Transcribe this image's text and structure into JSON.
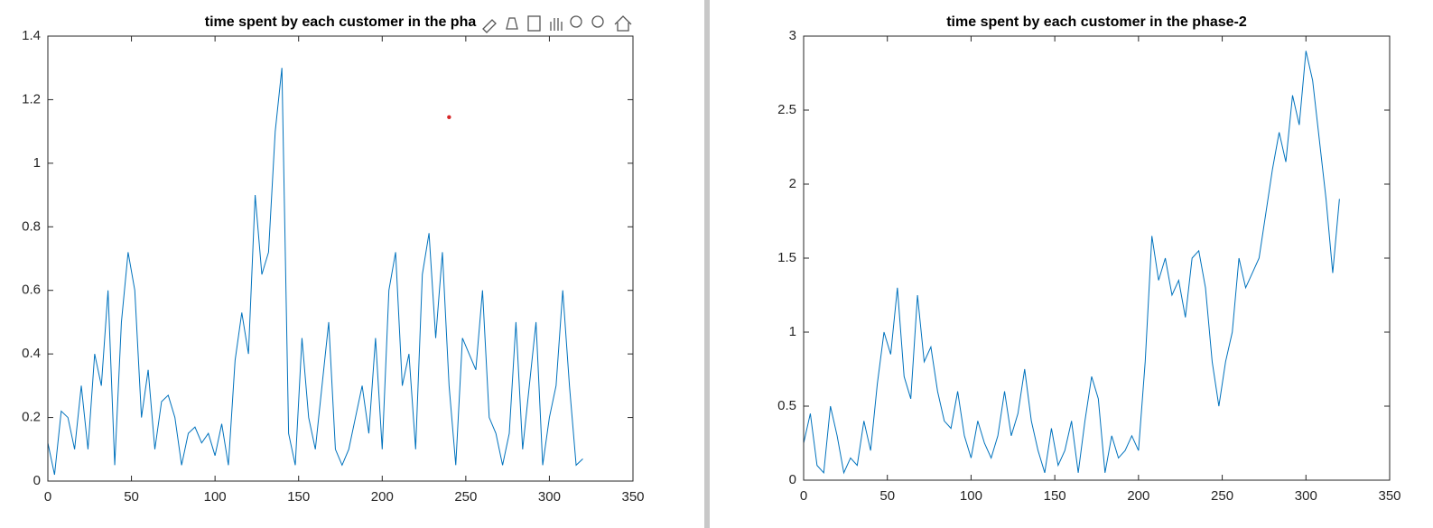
{
  "chart_data": [
    {
      "type": "line",
      "title": "time spent by each customer in the pha",
      "color": "#0072bd",
      "x": [
        0,
        4,
        8,
        12,
        16,
        20,
        24,
        28,
        32,
        36,
        40,
        44,
        48,
        52,
        56,
        60,
        64,
        68,
        72,
        76,
        80,
        84,
        88,
        92,
        96,
        100,
        104,
        108,
        112,
        116,
        120,
        124,
        128,
        132,
        136,
        140,
        144,
        148,
        152,
        156,
        160,
        164,
        168,
        172,
        176,
        180,
        184,
        188,
        192,
        196,
        200,
        204,
        208,
        212,
        216,
        220,
        224,
        228,
        232,
        236,
        240,
        244,
        248,
        252,
        256,
        260,
        264,
        268,
        272,
        276,
        280,
        284,
        288,
        292,
        296,
        300,
        304,
        308,
        312,
        316,
        320
      ],
      "values": [
        0.12,
        0.02,
        0.22,
        0.2,
        0.1,
        0.3,
        0.1,
        0.4,
        0.3,
        0.6,
        0.05,
        0.5,
        0.72,
        0.6,
        0.2,
        0.35,
        0.1,
        0.25,
        0.27,
        0.2,
        0.05,
        0.15,
        0.17,
        0.12,
        0.15,
        0.08,
        0.18,
        0.05,
        0.38,
        0.53,
        0.4,
        0.9,
        0.65,
        0.72,
        1.1,
        1.3,
        0.15,
        0.05,
        0.45,
        0.2,
        0.1,
        0.3,
        0.5,
        0.1,
        0.05,
        0.1,
        0.2,
        0.3,
        0.15,
        0.45,
        0.1,
        0.6,
        0.72,
        0.3,
        0.4,
        0.1,
        0.65,
        0.78,
        0.45,
        0.72,
        0.3,
        0.05,
        0.45,
        0.4,
        0.35,
        0.6,
        0.2,
        0.15,
        0.05,
        0.15,
        0.5,
        0.1,
        0.3,
        0.5,
        0.05,
        0.2,
        0.3,
        0.6,
        0.3,
        0.05,
        0.07
      ],
      "marker": {
        "x": 240,
        "y": 1.145,
        "color": "#d62728"
      },
      "xlim": [
        0,
        350
      ],
      "xticks": [
        0,
        50,
        100,
        150,
        200,
        250,
        300,
        350
      ],
      "ylim": [
        0,
        1.4
      ],
      "yticks": [
        0,
        0.2,
        0.4,
        0.6,
        0.8,
        1,
        1.2,
        1.4
      ]
    },
    {
      "type": "line",
      "title": "time spent by each customer in the phase-2",
      "color": "#0072bd",
      "x": [
        0,
        4,
        8,
        12,
        16,
        20,
        24,
        28,
        32,
        36,
        40,
        44,
        48,
        52,
        56,
        60,
        64,
        68,
        72,
        76,
        80,
        84,
        88,
        92,
        96,
        100,
        104,
        108,
        112,
        116,
        120,
        124,
        128,
        132,
        136,
        140,
        144,
        148,
        152,
        156,
        160,
        164,
        168,
        172,
        176,
        180,
        184,
        188,
        192,
        196,
        200,
        204,
        208,
        212,
        216,
        220,
        224,
        228,
        232,
        236,
        240,
        244,
        248,
        252,
        256,
        260,
        264,
        268,
        272,
        276,
        280,
        284,
        288,
        292,
        296,
        300,
        304,
        308,
        312,
        316,
        320
      ],
      "values": [
        0.25,
        0.45,
        0.1,
        0.05,
        0.5,
        0.3,
        0.05,
        0.15,
        0.1,
        0.4,
        0.2,
        0.65,
        1.0,
        0.85,
        1.3,
        0.7,
        0.55,
        1.25,
        0.8,
        0.9,
        0.6,
        0.4,
        0.35,
        0.6,
        0.3,
        0.15,
        0.4,
        0.25,
        0.15,
        0.3,
        0.6,
        0.3,
        0.45,
        0.75,
        0.4,
        0.2,
        0.05,
        0.35,
        0.1,
        0.2,
        0.4,
        0.05,
        0.4,
        0.7,
        0.55,
        0.05,
        0.3,
        0.15,
        0.2,
        0.3,
        0.2,
        0.8,
        1.65,
        1.35,
        1.5,
        1.25,
        1.35,
        1.1,
        1.5,
        1.55,
        1.3,
        0.8,
        0.5,
        0.8,
        1.0,
        1.5,
        1.3,
        1.4,
        1.5,
        1.8,
        2.1,
        2.35,
        2.15,
        2.6,
        2.4,
        2.9,
        2.7,
        2.3,
        1.9,
        1.4,
        1.9
      ],
      "xlim": [
        0,
        350
      ],
      "xticks": [
        0,
        50,
        100,
        150,
        200,
        250,
        300,
        350
      ],
      "ylim": [
        0,
        3
      ],
      "yticks": [
        0,
        0.5,
        1,
        1.5,
        2,
        2.5,
        3
      ]
    }
  ]
}
